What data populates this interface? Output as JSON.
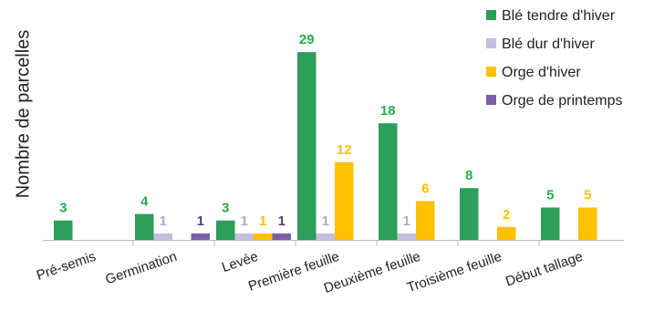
{
  "chart_data": {
    "type": "bar",
    "title": "",
    "xlabel": "",
    "ylabel": "Nombre de parcelles",
    "ylim": [
      0,
      30
    ],
    "grid": false,
    "legend_position": "top-right",
    "categories": [
      "Pré-semis",
      "Germination",
      "Levée",
      "Première feuille",
      "Deuxième feuille",
      "Troisième feuille",
      "Début tallage"
    ],
    "series": [
      {
        "name": "Blé tendre d'hiver",
        "color": "#2e9e5b",
        "label_color": "#22b04d",
        "values": [
          3,
          4,
          3,
          29,
          18,
          8,
          5
        ]
      },
      {
        "name": "Blé dur d'hiver",
        "color": "#c9bee0",
        "label_color": "#b6a6d2",
        "values": [
          0,
          1,
          1,
          1,
          1,
          0,
          0
        ]
      },
      {
        "name": "Orge d'hiver",
        "color": "#ffc000",
        "label_color": "#ffc000",
        "values": [
          0,
          0,
          1,
          12,
          6,
          2,
          5
        ]
      },
      {
        "name": "Orge de printemps",
        "color": "#7b5ea8",
        "label_color": "#5a3d84",
        "values": [
          0,
          1,
          1,
          0,
          0,
          0,
          0
        ]
      }
    ]
  }
}
